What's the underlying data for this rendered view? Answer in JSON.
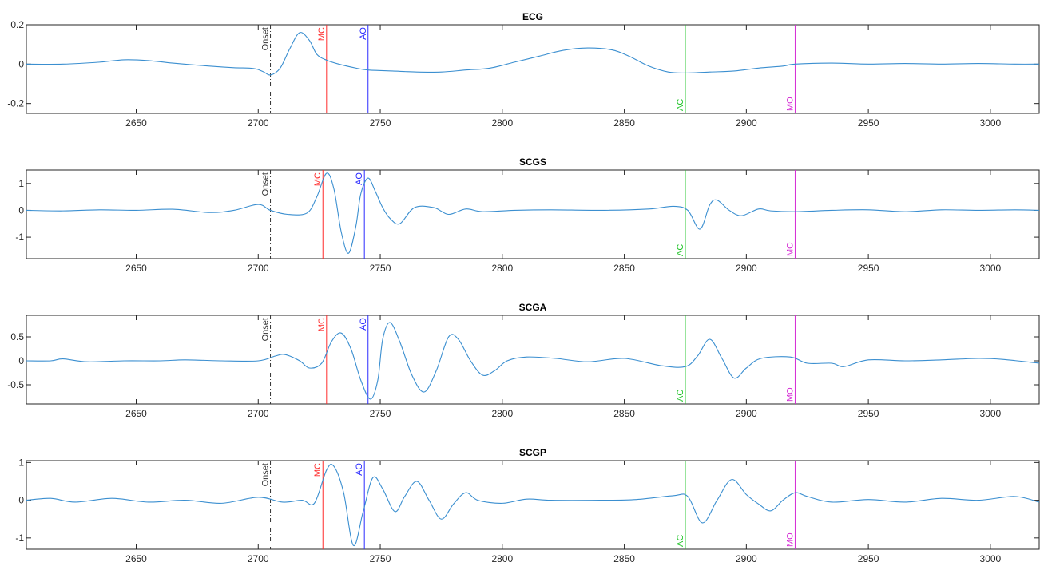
{
  "chart_data": {
    "type": "line",
    "x_range": [
      2605,
      3020
    ],
    "x_ticks": [
      2650,
      2700,
      2750,
      2800,
      2850,
      2900,
      2950,
      3000
    ],
    "line_color": "#3b8fd0",
    "markers": [
      {
        "label": "Onset",
        "x": 2705,
        "color": "#333333",
        "style": "dashdot",
        "label_position": "top"
      },
      {
        "label": "MC",
        "x": 2728,
        "color": "#ff2a2a",
        "style": "solid",
        "label_position": "top"
      },
      {
        "label": "AO",
        "x": 2745,
        "color": "#2a2aff",
        "style": "solid",
        "label_position": "top"
      },
      {
        "label": "AC",
        "x": 2875,
        "color": "#22c42a",
        "style": "solid",
        "label_position": "bottom"
      },
      {
        "label": "MO",
        "x": 2920,
        "color": "#d42ad4",
        "style": "solid",
        "label_position": "bottom"
      }
    ],
    "panels": [
      {
        "title": "ECG",
        "ylim": [
          -0.25,
          0.2
        ],
        "y_ticks": [
          -0.2,
          0,
          0.2
        ],
        "y_tick_labels": [
          "-0.2",
          "0",
          "0.2"
        ],
        "marker_offsets": {
          "Onset": 0,
          "MC": 0,
          "AO": 0,
          "AC": 0,
          "MO": 0
        },
        "points": [
          [
            2605,
            0
          ],
          [
            2620,
            0
          ],
          [
            2635,
            0.01
          ],
          [
            2645,
            0.022
          ],
          [
            2655,
            0.018
          ],
          [
            2665,
            0.005
          ],
          [
            2680,
            -0.01
          ],
          [
            2690,
            -0.018
          ],
          [
            2698,
            -0.022
          ],
          [
            2702,
            -0.038
          ],
          [
            2705,
            -0.055
          ],
          [
            2709,
            -0.02
          ],
          [
            2713,
            0.08
          ],
          [
            2717,
            0.16
          ],
          [
            2721,
            0.12
          ],
          [
            2724,
            0.05
          ],
          [
            2728,
            0.02
          ],
          [
            2733,
            0
          ],
          [
            2740,
            -0.02
          ],
          [
            2745,
            -0.03
          ],
          [
            2755,
            -0.035
          ],
          [
            2765,
            -0.04
          ],
          [
            2775,
            -0.04
          ],
          [
            2785,
            -0.03
          ],
          [
            2795,
            -0.02
          ],
          [
            2805,
            0.01
          ],
          [
            2815,
            0.04
          ],
          [
            2825,
            0.07
          ],
          [
            2835,
            0.082
          ],
          [
            2845,
            0.072
          ],
          [
            2852,
            0.04
          ],
          [
            2860,
            -0.01
          ],
          [
            2868,
            -0.04
          ],
          [
            2875,
            -0.045
          ],
          [
            2885,
            -0.04
          ],
          [
            2895,
            -0.035
          ],
          [
            2905,
            -0.02
          ],
          [
            2915,
            -0.01
          ],
          [
            2920,
            0
          ],
          [
            2935,
            0.005
          ],
          [
            2950,
            0
          ],
          [
            2965,
            0.003
          ],
          [
            2980,
            0
          ],
          [
            2995,
            0.003
          ],
          [
            3010,
            0
          ],
          [
            3020,
            0
          ]
        ]
      },
      {
        "title": "SCGS",
        "ylim": [
          -1.8,
          1.5
        ],
        "y_ticks": [
          -1,
          0,
          1
        ],
        "y_tick_labels": [
          "-1",
          "0",
          "1"
        ],
        "marker_offsets": {
          "Onset": 0,
          "MC": -1.5,
          "AO": -1.5,
          "AC": 0,
          "MO": 0
        },
        "points": [
          [
            2605,
            0
          ],
          [
            2620,
            -0.02
          ],
          [
            2635,
            0.02
          ],
          [
            2650,
            0
          ],
          [
            2665,
            0.04
          ],
          [
            2680,
            -0.08
          ],
          [
            2690,
            0
          ],
          [
            2700,
            0.22
          ],
          [
            2705,
            0
          ],
          [
            2712,
            -0.15
          ],
          [
            2720,
            -0.1
          ],
          [
            2724,
            0.5
          ],
          [
            2728,
            1.38
          ],
          [
            2731,
            0.8
          ],
          [
            2734,
            -0.8
          ],
          [
            2737,
            -1.6
          ],
          [
            2740,
            -0.6
          ],
          [
            2742,
            0.6
          ],
          [
            2745,
            1.2
          ],
          [
            2748,
            0.7
          ],
          [
            2751,
            0.1
          ],
          [
            2754,
            -0.3
          ],
          [
            2758,
            -0.5
          ],
          [
            2764,
            0.1
          ],
          [
            2772,
            0.1
          ],
          [
            2778,
            -0.15
          ],
          [
            2785,
            0.05
          ],
          [
            2792,
            -0.05
          ],
          [
            2805,
            0
          ],
          [
            2820,
            0.02
          ],
          [
            2840,
            0
          ],
          [
            2860,
            0.05
          ],
          [
            2870,
            0.15
          ],
          [
            2876,
            0
          ],
          [
            2881,
            -0.7
          ],
          [
            2885,
            0.2
          ],
          [
            2888,
            0.38
          ],
          [
            2893,
            0
          ],
          [
            2898,
            -0.2
          ],
          [
            2905,
            0.05
          ],
          [
            2910,
            -0.02
          ],
          [
            2920,
            -0.05
          ],
          [
            2935,
            0
          ],
          [
            2950,
            0.02
          ],
          [
            2965,
            -0.05
          ],
          [
            2980,
            0.02
          ],
          [
            2995,
            0
          ],
          [
            3010,
            0.02
          ],
          [
            3020,
            0
          ]
        ]
      },
      {
        "title": "SCGA",
        "ylim": [
          -0.9,
          0.95
        ],
        "y_ticks": [
          -0.5,
          0,
          0.5
        ],
        "y_tick_labels": [
          "-0.5",
          "0",
          "0.5"
        ],
        "marker_offsets": {
          "Onset": 0,
          "MC": 0,
          "AO": 0,
          "AC": 0,
          "MO": 0
        },
        "points": [
          [
            2605,
            0
          ],
          [
            2615,
            0
          ],
          [
            2620,
            0.04
          ],
          [
            2630,
            -0.02
          ],
          [
            2645,
            0
          ],
          [
            2660,
            0
          ],
          [
            2670,
            0.02
          ],
          [
            2685,
            0
          ],
          [
            2700,
            0
          ],
          [
            2707,
            0.1
          ],
          [
            2711,
            0.13
          ],
          [
            2717,
            0
          ],
          [
            2721,
            -0.15
          ],
          [
            2726,
            -0.05
          ],
          [
            2730,
            0.4
          ],
          [
            2734,
            0.58
          ],
          [
            2738,
            0.25
          ],
          [
            2742,
            -0.4
          ],
          [
            2746,
            -0.8
          ],
          [
            2749,
            -0.4
          ],
          [
            2751,
            0.45
          ],
          [
            2754,
            0.8
          ],
          [
            2758,
            0.4
          ],
          [
            2763,
            -0.3
          ],
          [
            2768,
            -0.65
          ],
          [
            2773,
            -0.2
          ],
          [
            2778,
            0.5
          ],
          [
            2782,
            0.45
          ],
          [
            2787,
            0
          ],
          [
            2792,
            -0.3
          ],
          [
            2797,
            -0.2
          ],
          [
            2802,
            0
          ],
          [
            2810,
            0.08
          ],
          [
            2822,
            0.05
          ],
          [
            2835,
            -0.02
          ],
          [
            2850,
            0.05
          ],
          [
            2865,
            -0.1
          ],
          [
            2875,
            -0.12
          ],
          [
            2880,
            0.1
          ],
          [
            2885,
            0.45
          ],
          [
            2890,
            0.05
          ],
          [
            2895,
            -0.36
          ],
          [
            2900,
            -0.15
          ],
          [
            2906,
            0.05
          ],
          [
            2918,
            0.08
          ],
          [
            2925,
            -0.05
          ],
          [
            2935,
            -0.05
          ],
          [
            2940,
            -0.12
          ],
          [
            2950,
            0.02
          ],
          [
            2965,
            0
          ],
          [
            2980,
            0.02
          ],
          [
            2995,
            0.05
          ],
          [
            3005,
            0.03
          ],
          [
            3020,
            -0.05
          ]
        ]
      },
      {
        "title": "SCGP",
        "ylim": [
          -1.3,
          1.05
        ],
        "y_ticks": [
          -1,
          0,
          1
        ],
        "y_tick_labels": [
          "-1",
          "0",
          "1"
        ],
        "marker_offsets": {
          "Onset": 0,
          "MC": -1.5,
          "AO": -1.5,
          "AC": 0,
          "MO": 0
        },
        "points": [
          [
            2605,
            0
          ],
          [
            2615,
            0.05
          ],
          [
            2625,
            -0.05
          ],
          [
            2640,
            0.05
          ],
          [
            2655,
            -0.05
          ],
          [
            2670,
            0
          ],
          [
            2685,
            -0.08
          ],
          [
            2700,
            0.08
          ],
          [
            2710,
            -0.05
          ],
          [
            2718,
            0
          ],
          [
            2723,
            -0.08
          ],
          [
            2728,
            0.8
          ],
          [
            2731,
            0.9
          ],
          [
            2735,
            0.2
          ],
          [
            2739,
            -1.2
          ],
          [
            2743,
            -0.3
          ],
          [
            2747,
            0.6
          ],
          [
            2751,
            0.3
          ],
          [
            2756,
            -0.3
          ],
          [
            2760,
            0.1
          ],
          [
            2765,
            0.5
          ],
          [
            2770,
            0
          ],
          [
            2775,
            -0.5
          ],
          [
            2780,
            -0.1
          ],
          [
            2785,
            0.2
          ],
          [
            2790,
            0
          ],
          [
            2800,
            -0.08
          ],
          [
            2810,
            0.03
          ],
          [
            2820,
            0
          ],
          [
            2840,
            0
          ],
          [
            2855,
            0.02
          ],
          [
            2870,
            0.12
          ],
          [
            2876,
            0.1
          ],
          [
            2882,
            -0.6
          ],
          [
            2888,
            0
          ],
          [
            2894,
            0.55
          ],
          [
            2900,
            0.15
          ],
          [
            2905,
            -0.1
          ],
          [
            2910,
            -0.28
          ],
          [
            2915,
            0
          ],
          [
            2920,
            0.2
          ],
          [
            2925,
            0.1
          ],
          [
            2935,
            -0.05
          ],
          [
            2950,
            0.02
          ],
          [
            2965,
            -0.05
          ],
          [
            2980,
            0.05
          ],
          [
            2995,
            0
          ],
          [
            3010,
            0.1
          ],
          [
            3020,
            -0.05
          ]
        ]
      }
    ]
  }
}
